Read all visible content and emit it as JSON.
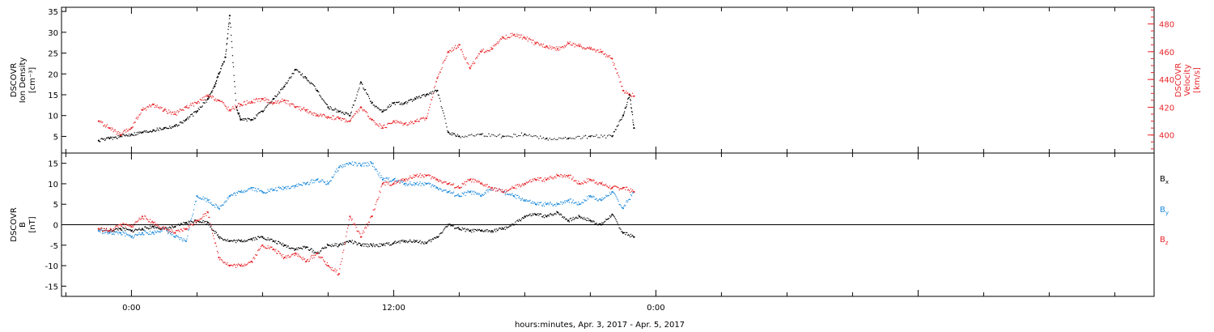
{
  "colors": {
    "black": "#000000",
    "red": "#e8252a",
    "blue": "#1e8bdc"
  },
  "xlabel": "hours:minutes, Apr.  3, 2017 - Apr.  5, 2017",
  "chart_data": [
    {
      "type": "scatter",
      "panel": "top",
      "ylabel_left": [
        "DSCOVR",
        "Ion Density",
        "[cm⁻³]"
      ],
      "ylabel_right": [
        "DSCOVR",
        "Velocity",
        "[km/s]"
      ],
      "x_unit": "hours from 00:00 Apr. 3, 2017",
      "xlim": [
        -3.2,
        46.8
      ],
      "ylim_left": [
        1,
        36
      ],
      "ylim_right": [
        387,
        492
      ],
      "x_tick_labels": [
        {
          "x": 0,
          "label": "0:00"
        },
        {
          "x": 12,
          "label": "12:00"
        },
        {
          "x": 24,
          "label": "0:00"
        }
      ],
      "y_ticks_left": [
        5,
        10,
        15,
        20,
        25,
        30,
        35
      ],
      "y_ticks_right": [
        400,
        420,
        440,
        460,
        480
      ],
      "series": [
        {
          "axis": "left",
          "color": "black",
          "x": [
            -1.5,
            -1.0,
            -0.5,
            0.0,
            0.5,
            1.0,
            1.5,
            2.0,
            2.5,
            3.0,
            3.5,
            3.8,
            4.0,
            4.3,
            4.5,
            4.8,
            5.0,
            5.5,
            6.0,
            6.5,
            7.0,
            7.5,
            8.0,
            8.5,
            9.0,
            9.5,
            10.0,
            10.5,
            11.0,
            11.5,
            12.0,
            12.5,
            13.0,
            13.5,
            14.0,
            14.5,
            15.0,
            16.0,
            17.0,
            18.0,
            19.0,
            20.0,
            21.0,
            22.0,
            22.5,
            22.8,
            23.0
          ],
          "y": [
            4,
            4.5,
            5,
            5.5,
            6,
            6.5,
            7,
            7.5,
            9,
            11,
            14,
            17,
            20,
            24,
            34,
            12,
            9,
            9,
            11,
            14,
            17,
            21,
            19,
            16,
            12,
            11,
            10,
            18,
            13,
            11,
            13,
            13,
            14,
            15,
            16,
            6,
            5,
            5.5,
            5,
            5.5,
            4.5,
            4.5,
            5,
            5,
            10,
            15,
            7
          ]
        },
        {
          "axis": "right",
          "color": "red",
          "x": [
            -1.5,
            -1.0,
            -0.5,
            0.0,
            0.5,
            1.0,
            1.5,
            2.0,
            2.5,
            3.0,
            3.5,
            4.0,
            4.5,
            5.0,
            5.5,
            6.0,
            6.5,
            7.0,
            7.5,
            8.0,
            8.5,
            9.0,
            9.5,
            10.0,
            10.5,
            11.0,
            11.5,
            12.0,
            12.5,
            13.0,
            13.5,
            14.0,
            14.5,
            15.0,
            15.5,
            16.0,
            16.5,
            17.0,
            17.5,
            18.0,
            18.5,
            19.0,
            19.5,
            20.0,
            20.5,
            21.0,
            21.5,
            22.0,
            22.5,
            23.0
          ],
          "y": [
            410,
            405,
            400,
            405,
            418,
            422,
            418,
            415,
            420,
            423,
            428,
            425,
            418,
            422,
            424,
            426,
            423,
            425,
            420,
            418,
            414,
            413,
            412,
            410,
            420,
            411,
            405,
            410,
            408,
            410,
            412,
            441,
            460,
            465,
            448,
            460,
            462,
            470,
            472,
            470,
            466,
            464,
            462,
            466,
            464,
            462,
            460,
            455,
            432,
            428
          ]
        }
      ]
    },
    {
      "type": "scatter",
      "panel": "bottom",
      "ylabel_left": [
        "DSCOVR",
        "B",
        "[nT]"
      ],
      "xlim": [
        -3.2,
        46.8
      ],
      "ylim": [
        -17.5,
        17.5
      ],
      "y_ticks": [
        -15,
        -10,
        -5,
        0,
        5,
        10,
        15
      ],
      "x_tick_labels": [
        {
          "x": 0,
          "label": "0:00"
        },
        {
          "x": 12,
          "label": "12:00"
        },
        {
          "x": 24,
          "label": "0:00"
        }
      ],
      "series": [
        {
          "name": "Bx",
          "color": "black",
          "x": [
            -1.5,
            -1.0,
            -0.5,
            0.0,
            0.5,
            1.0,
            1.5,
            2.0,
            2.5,
            3.0,
            3.5,
            4.0,
            4.5,
            5.0,
            5.5,
            6.0,
            6.5,
            7.0,
            7.5,
            8.0,
            8.5,
            9.0,
            9.5,
            10.0,
            10.5,
            11.0,
            11.5,
            12.0,
            12.5,
            13.0,
            13.5,
            14.0,
            14.5,
            15.0,
            15.5,
            16.0,
            16.5,
            17.0,
            17.5,
            18.0,
            18.5,
            19.0,
            19.5,
            20.0,
            20.5,
            21.0,
            21.5,
            22.0,
            22.5,
            23.0
          ],
          "y": [
            -1,
            -1.5,
            -1,
            -1.5,
            -1,
            -0.5,
            -1,
            -0.5,
            0.5,
            1,
            0.5,
            -3,
            -4,
            -4,
            -3.5,
            -3,
            -4,
            -5,
            -6,
            -5.5,
            -7,
            -5,
            -5,
            -4,
            -5,
            -5,
            -5,
            -4.5,
            -4,
            -4,
            -4.5,
            -3,
            0,
            -1,
            -1.5,
            -1.5,
            -1.5,
            -1,
            0,
            2,
            2.5,
            2,
            3,
            1,
            2,
            1,
            0,
            2.5,
            -2,
            -3
          ]
        },
        {
          "name": "By",
          "color": "blue",
          "x": [
            -1.5,
            -1.0,
            -0.5,
            0.0,
            0.5,
            1.0,
            1.5,
            2.0,
            2.5,
            3.0,
            3.5,
            4.0,
            4.5,
            5.0,
            5.5,
            6.0,
            6.5,
            7.0,
            7.5,
            8.0,
            8.5,
            9.0,
            9.5,
            10.0,
            10.5,
            11.0,
            11.5,
            12.0,
            12.5,
            13.0,
            13.5,
            14.0,
            14.5,
            15.0,
            15.5,
            16.0,
            16.5,
            17.0,
            17.5,
            18.0,
            18.5,
            19.0,
            19.5,
            20.0,
            20.5,
            21.0,
            21.5,
            22.0,
            22.5,
            23.0
          ],
          "y": [
            -1.5,
            -2,
            -2,
            -3,
            -2,
            -2,
            -1,
            -3,
            -4,
            7,
            6,
            4,
            7,
            8,
            9,
            8,
            8.5,
            9,
            9.5,
            10,
            11,
            10,
            14,
            15,
            14.5,
            15,
            11,
            11,
            10,
            10,
            10,
            9,
            8,
            7,
            8,
            7,
            9,
            8,
            7,
            6,
            5,
            5,
            5,
            6,
            5,
            7,
            6,
            8,
            4,
            8
          ]
        },
        {
          "name": "Bz",
          "color": "red",
          "x": [
            -1.5,
            -1.0,
            -0.5,
            0.0,
            0.5,
            1.0,
            1.5,
            2.0,
            2.5,
            3.0,
            3.5,
            4.0,
            4.5,
            5.0,
            5.5,
            6.0,
            6.5,
            7.0,
            7.5,
            8.0,
            8.5,
            9.0,
            9.5,
            10.0,
            10.5,
            11.0,
            11.5,
            12.0,
            12.5,
            13.0,
            13.5,
            14.0,
            14.5,
            15.0,
            15.5,
            16.0,
            16.5,
            17.0,
            17.5,
            18.0,
            18.5,
            19.0,
            19.5,
            20.0,
            20.5,
            21.0,
            21.5,
            22.0,
            22.5,
            23.0
          ],
          "y": [
            -1,
            -1.5,
            0,
            -0.5,
            2,
            0.5,
            -1,
            -2,
            -1,
            1,
            3,
            -8,
            -10,
            -10,
            -9,
            -5,
            -6,
            -8,
            -7,
            -9,
            -7,
            -10,
            -12,
            2,
            -3,
            2,
            10,
            10,
            11,
            12,
            12,
            11,
            10,
            9,
            11,
            10,
            9,
            8,
            9,
            10,
            11,
            11,
            12,
            12,
            10,
            11,
            10,
            9,
            9,
            8
          ]
        }
      ]
    }
  ],
  "legend": [
    {
      "text": "B",
      "sub": "x",
      "color": "black"
    },
    {
      "text": "B",
      "sub": "y",
      "color": "blue"
    },
    {
      "text": "B",
      "sub": "z",
      "color": "red"
    }
  ]
}
